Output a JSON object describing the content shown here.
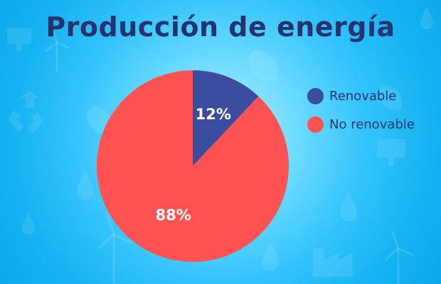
{
  "chart_data": {
    "type": "pie",
    "title": "Producción de energía",
    "categories": [
      "Renovable",
      "No renovable"
    ],
    "values": [
      12,
      88
    ],
    "value_labels": [
      "12%",
      "88%"
    ],
    "colors": [
      "#3c4c9e",
      "#ff5252"
    ],
    "legend_position": "right",
    "start_angle": "top",
    "direction": "clockwise"
  },
  "theme": {
    "title_color": "#27336f",
    "background": "#1eb6f4",
    "background_icons": [
      "recycle-icon",
      "leaf-icon",
      "water-drop-icon",
      "wind-turbine-icon",
      "solar-panel-icon",
      "factory-icon"
    ]
  }
}
